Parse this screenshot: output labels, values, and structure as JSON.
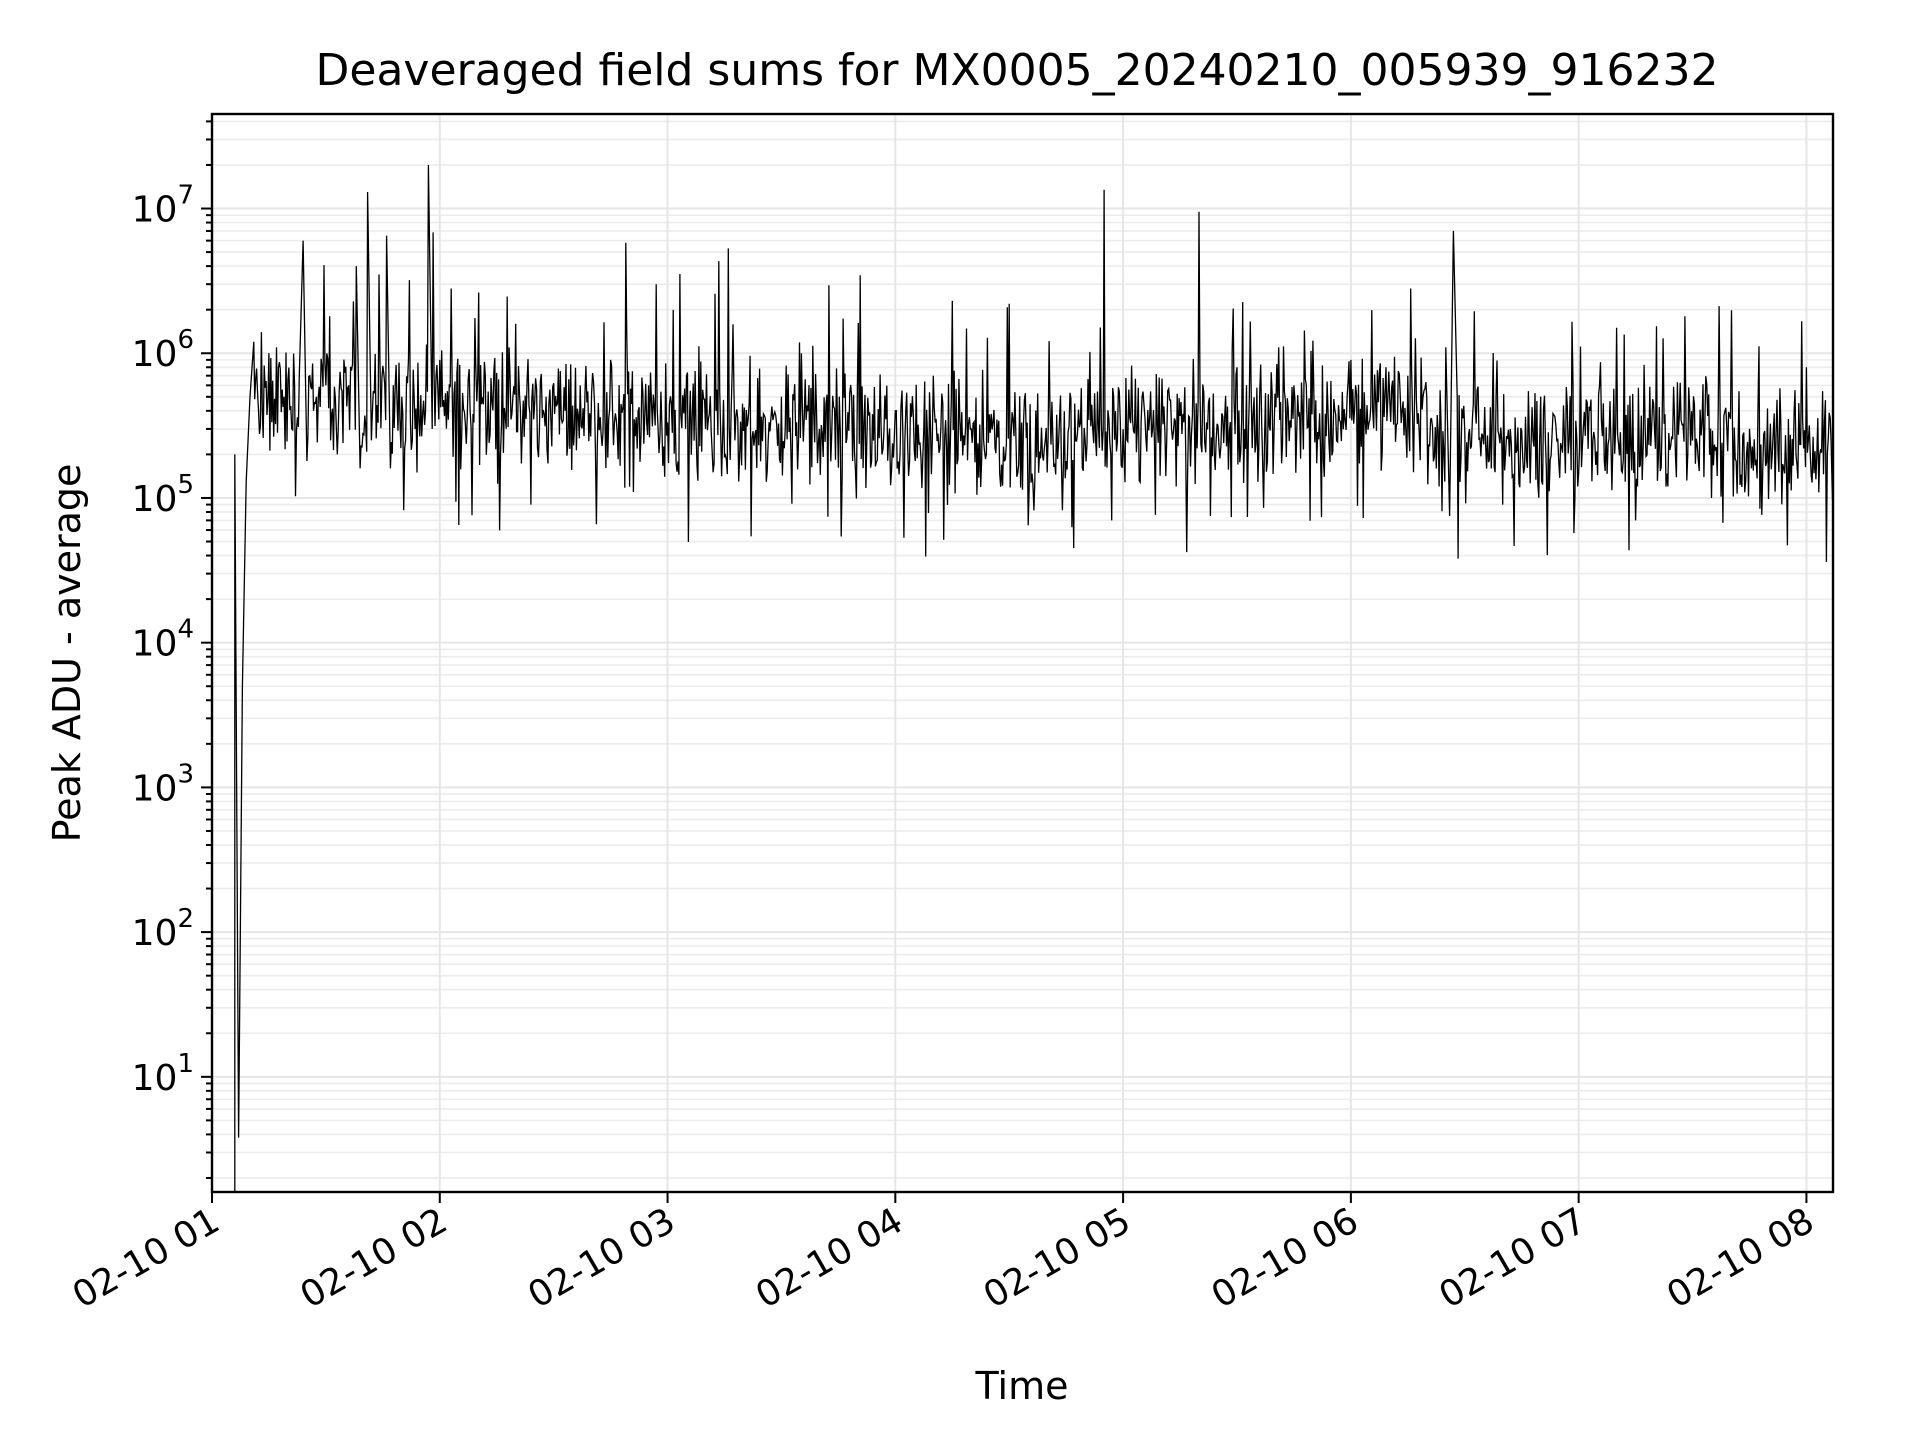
{
  "chart_data": {
    "type": "line",
    "title": "Deaveraged field sums for MX0005_20240210_005939_916232",
    "xlabel": "Time",
    "ylabel": "Peak ADU - average",
    "yscale": "log",
    "ylim": [
      1.6,
      45000000
    ],
    "xlim": [
      "2024-02-10 01:00",
      "2024-02-10 08:07"
    ],
    "grid": "on (major and minor)",
    "legend": "none",
    "line_color": "#000000",
    "x_ticks": [
      {
        "t": "2024-02-10 01:00",
        "label": "02-10 01"
      },
      {
        "t": "2024-02-10 02:00",
        "label": "02-10 02"
      },
      {
        "t": "2024-02-10 03:00",
        "label": "02-10 03"
      },
      {
        "t": "2024-02-10 04:00",
        "label": "02-10 04"
      },
      {
        "t": "2024-02-10 05:00",
        "label": "02-10 05"
      },
      {
        "t": "2024-02-10 06:00",
        "label": "02-10 06"
      },
      {
        "t": "2024-02-10 07:00",
        "label": "02-10 07"
      },
      {
        "t": "2024-02-10 08:00",
        "label": "02-10 08"
      }
    ],
    "y_ticks": [
      {
        "value": 10,
        "base": "10",
        "exp": "1"
      },
      {
        "value": 100,
        "base": "10",
        "exp": "2"
      },
      {
        "value": 1000,
        "base": "10",
        "exp": "3"
      },
      {
        "value": 10000,
        "base": "10",
        "exp": "4"
      },
      {
        "value": 100000,
        "base": "10",
        "exp": "5"
      },
      {
        "value": 1000000,
        "base": "10",
        "exp": "6"
      },
      {
        "value": 10000000,
        "base": "10",
        "exp": "7"
      }
    ],
    "series": [
      {
        "points": [
          [
            "2024-02-10 01:06",
            1.6
          ],
          [
            "2024-02-10 01:06",
            200000
          ],
          [
            "2024-02-10 01:07",
            3.8
          ],
          [
            "2024-02-10 01:08",
            5000
          ],
          [
            "2024-02-10 01:09",
            130000
          ],
          [
            "2024-02-10 01:10",
            500000
          ],
          [
            "2024-02-10 01:11",
            1200000
          ],
          [
            "2024-02-10 01:13",
            1400000
          ],
          [
            "2024-02-10 01:15",
            1000000
          ],
          [
            "2024-02-10 01:17",
            1100000
          ],
          [
            "2024-02-10 01:19",
            500000
          ],
          [
            "2024-02-10 01:21",
            300000
          ],
          [
            "2024-02-10 01:23",
            700000
          ],
          [
            "2024-02-10 01:24",
            6000000
          ],
          [
            "2024-02-10 01:25",
            180000
          ],
          [
            "2024-02-10 01:28",
            500000
          ],
          [
            "2024-02-10 01:31",
            1800000
          ],
          [
            "2024-02-10 01:33",
            200000
          ],
          [
            "2024-02-10 01:36",
            600000
          ],
          [
            "2024-02-10 01:38",
            4000000
          ],
          [
            "2024-02-10 01:39",
            160000
          ],
          [
            "2024-02-10 01:41",
            13000000
          ],
          [
            "2024-02-10 01:42",
            250000
          ],
          [
            "2024-02-10 01:44",
            3500000
          ],
          [
            "2024-02-10 01:46",
            6500000
          ],
          [
            "2024-02-10 01:47",
            160000
          ],
          [
            "2024-02-10 01:50",
            500000
          ],
          [
            "2024-02-10 01:52",
            3200000
          ],
          [
            "2024-02-10 01:54",
            150000
          ],
          [
            "2024-02-10 01:57",
            20000000
          ],
          [
            "2024-02-10 01:58",
            300000
          ],
          [
            "2024-02-10 02:00",
            900000
          ],
          [
            "2024-02-10 02:03",
            2800000
          ],
          [
            "2024-02-10 02:05",
            65000
          ],
          [
            "2024-02-10 02:08",
            400000
          ],
          [
            "2024-02-10 02:12",
            700000
          ],
          [
            "2024-02-10 02:16",
            200000
          ],
          [
            "2024-02-10 02:20",
            1600000
          ],
          [
            "2024-02-10 02:24",
            90000
          ],
          [
            "2024-02-10 02:28",
            500000
          ],
          [
            "2024-02-10 02:33",
            400000
          ],
          [
            "2024-02-10 02:37",
            600000
          ],
          [
            "2024-02-10 02:41",
            220000
          ],
          [
            "2024-02-10 02:45",
            900000
          ],
          [
            "2024-02-10 02:49",
            5800000
          ],
          [
            "2024-02-10 02:51",
            110000
          ],
          [
            "2024-02-10 02:55",
            600000
          ],
          [
            "2024-02-10 02:57",
            3000000
          ],
          [
            "2024-02-10 03:01",
            450000
          ],
          [
            "2024-02-10 03:05",
            700000
          ],
          [
            "2024-02-10 03:10",
            300000
          ],
          [
            "2024-02-10 03:16",
            5300000
          ],
          [
            "2024-02-10 03:19",
            200000
          ],
          [
            "2024-02-10 03:30",
            500000
          ],
          [
            "2024-02-10 03:40",
            300000
          ],
          [
            "2024-02-10 03:50",
            600000
          ],
          [
            "2024-02-10 04:00",
            400000
          ],
          [
            "2024-02-10 04:10",
            700000
          ],
          [
            "2024-02-10 04:15",
            2300000
          ],
          [
            "2024-02-10 04:20",
            300000
          ],
          [
            "2024-02-10 04:30",
            2200000
          ],
          [
            "2024-02-10 04:40",
            150000
          ],
          [
            "2024-02-10 04:47",
            45000
          ],
          [
            "2024-02-10 04:52",
            300000
          ],
          [
            "2024-02-10 04:55",
            13500000
          ],
          [
            "2024-02-10 04:57",
            70000
          ],
          [
            "2024-02-10 05:05",
            500000
          ],
          [
            "2024-02-10 05:14",
            120000
          ],
          [
            "2024-02-10 05:20",
            9500000
          ],
          [
            "2024-02-10 05:23",
            75000
          ],
          [
            "2024-02-10 05:30",
            800000
          ],
          [
            "2024-02-10 05:45",
            600000
          ],
          [
            "2024-02-10 06:00",
            900000
          ],
          [
            "2024-02-10 06:15",
            700000
          ],
          [
            "2024-02-10 06:25",
            1100000
          ],
          [
            "2024-02-10 06:26",
            75000
          ],
          [
            "2024-02-10 06:27",
            7000000
          ],
          [
            "2024-02-10 06:28",
            500000
          ],
          [
            "2024-02-10 06:40",
            90000
          ],
          [
            "2024-02-10 06:50",
            500000
          ],
          [
            "2024-02-10 07:00",
            150000
          ],
          [
            "2024-02-10 07:10",
            1500000
          ],
          [
            "2024-02-10 07:15",
            70000
          ],
          [
            "2024-02-10 07:28",
            1800000
          ],
          [
            "2024-02-10 07:35",
            100000
          ],
          [
            "2024-02-10 07:45",
            300000
          ],
          [
            "2024-02-10 07:55",
            47000
          ],
          [
            "2024-02-10 08:00",
            800000
          ],
          [
            "2024-02-10 08:07",
            80000
          ]
        ]
      }
    ]
  }
}
